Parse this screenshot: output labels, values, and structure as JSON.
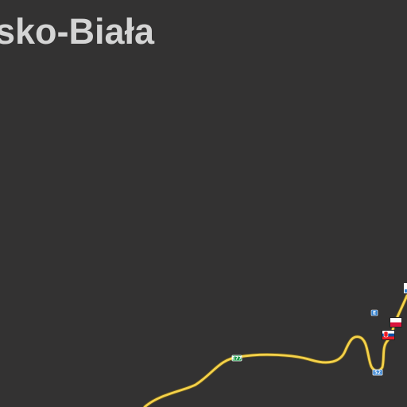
{
  "map": {
    "city_label": "sko-Biała",
    "background_color": "#333232",
    "road_color": "#f5d24a",
    "road_shields": [
      {
        "id": "s1",
        "text": "E77",
        "color": "#1f9a4c"
      },
      {
        "id": "s2",
        "text": "52",
        "color": "#2f7fd0"
      },
      {
        "id": "s3",
        "text": "E",
        "color": "#2f7fd0"
      }
    ],
    "flags": [
      {
        "id": "poland",
        "colors": [
          "#ffffff",
          "#dc143c"
        ]
      },
      {
        "id": "slovakia",
        "colors": [
          "#ffffff",
          "#0b4ea2",
          "#ee1c25"
        ]
      }
    ]
  }
}
